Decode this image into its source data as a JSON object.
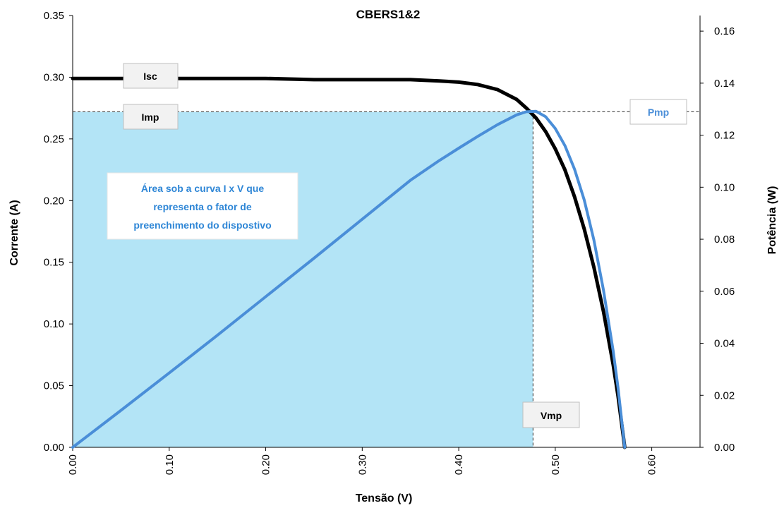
{
  "chart_data": {
    "type": "line",
    "title": "CBERS1&2",
    "xlabel": "Tensão (V)",
    "ylabel": "Corrente (A)",
    "y2label": "Potência (W)",
    "xlim": [
      0,
      0.65
    ],
    "ylim": [
      0,
      0.35
    ],
    "y2lim": [
      0,
      0.166
    ],
    "x_ticks": [
      "0.00",
      "0.10",
      "0.20",
      "0.30",
      "0.40",
      "0.50",
      "0.60"
    ],
    "y_ticks": [
      "0.00",
      "0.05",
      "0.10",
      "0.15",
      "0.20",
      "0.25",
      "0.30",
      "0.35"
    ],
    "y2_ticks": [
      "0.00",
      "0.02",
      "0.04",
      "0.06",
      "0.08",
      "0.10",
      "0.12",
      "0.14",
      "0.16"
    ],
    "grid": false,
    "series": [
      {
        "axis": "left",
        "color": "#000000",
        "x": [
          0.0,
          0.05,
          0.1,
          0.15,
          0.2,
          0.25,
          0.3,
          0.35,
          0.38,
          0.4,
          0.42,
          0.44,
          0.46,
          0.47,
          0.48,
          0.49,
          0.5,
          0.51,
          0.52,
          0.53,
          0.54,
          0.55,
          0.56,
          0.565,
          0.57,
          0.572
        ],
        "y": [
          0.299,
          0.299,
          0.299,
          0.299,
          0.299,
          0.298,
          0.298,
          0.298,
          0.297,
          0.296,
          0.294,
          0.29,
          0.282,
          0.275,
          0.267,
          0.256,
          0.242,
          0.225,
          0.203,
          0.177,
          0.146,
          0.11,
          0.067,
          0.042,
          0.012,
          0.0
        ]
      },
      {
        "axis": "right",
        "color": "#4a8ed8",
        "x": [
          0.0,
          0.05,
          0.1,
          0.15,
          0.2,
          0.25,
          0.3,
          0.35,
          0.38,
          0.4,
          0.42,
          0.44,
          0.46,
          0.47,
          0.48,
          0.49,
          0.5,
          0.51,
          0.52,
          0.53,
          0.54,
          0.55,
          0.56,
          0.565,
          0.57,
          0.572
        ],
        "y": [
          0.0,
          0.0142,
          0.0286,
          0.0431,
          0.0579,
          0.0727,
          0.0877,
          0.1027,
          0.1103,
          0.115,
          0.1196,
          0.124,
          0.1278,
          0.129,
          0.1292,
          0.1271,
          0.1226,
          0.116,
          0.1069,
          0.0951,
          0.0797,
          0.0604,
          0.0371,
          0.0231,
          0.0064,
          0.0
        ]
      }
    ],
    "annotations": {
      "isc": "Isc",
      "imp": "Imp",
      "pmp": "Pmp",
      "vmp": "Vmp",
      "note_lines": [
        "Área sob a curva I x V que",
        "representa o fator de",
        "preenchimento do dispostivo"
      ]
    },
    "markers": {
      "imp": 0.272,
      "vmp": 0.477,
      "pmp": 0.129
    },
    "colors": {
      "fill_area": "#b3e4f6",
      "current_curve": "#000000",
      "power_curve": "#4a8ed8",
      "note_text": "#2e86d6",
      "pmp_text": "#4a8ed8"
    }
  }
}
